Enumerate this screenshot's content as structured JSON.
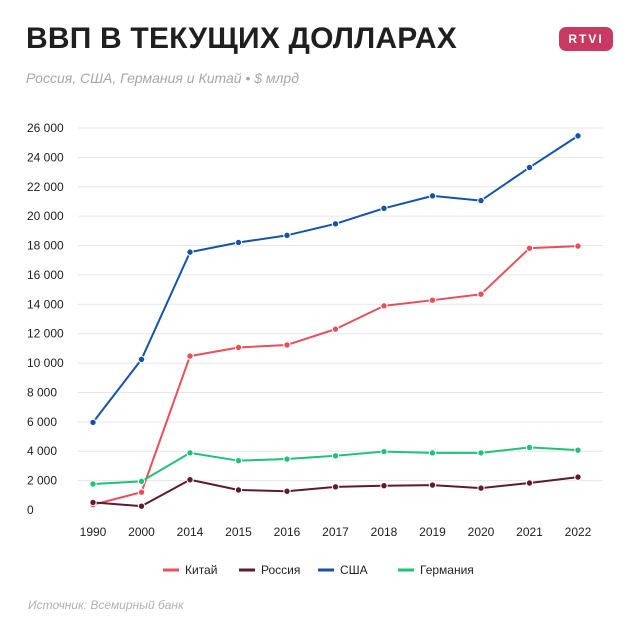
{
  "header": {
    "title": "ВВП В ТЕКУЩИХ ДОЛЛАРАХ",
    "subtitle": "Россия, США, Германия и Китай • $ млрд",
    "logo_text": "RTVI"
  },
  "footer": {
    "source": "Источник: Всемирный банк"
  },
  "colors": {
    "china": "#e5505a",
    "russia": "#5c1b32",
    "usa": "#1553a8",
    "germany": "#22c178",
    "grid": "#e6e6e6",
    "logo": "#c93a63"
  },
  "chart_data": {
    "type": "line",
    "title": "ВВП В ТЕКУЩИХ ДОЛЛАРАХ",
    "subtitle": "Россия, США, Германия и Китай • $ млрд",
    "categories": [
      "1990",
      "2000",
      "2014",
      "2015",
      "2016",
      "2017",
      "2018",
      "2019",
      "2020",
      "2021",
      "2022"
    ],
    "ylim": [
      0,
      26000
    ],
    "yticks": [
      0,
      2000,
      4000,
      6000,
      8000,
      10000,
      12000,
      14000,
      16000,
      18000,
      20000,
      22000,
      24000,
      26000
    ],
    "ytick_labels": [
      "0",
      "2 000",
      "4 000",
      "6 000",
      "8 000",
      "10 000",
      "12 000",
      "14 000",
      "16 000",
      "18 000",
      "20 000",
      "22 000",
      "24 000",
      "26 000"
    ],
    "grid": true,
    "legend_position": "bottom",
    "series": [
      {
        "name": "Китай",
        "color": "#e5505a",
        "values": [
          361,
          1211,
          10476,
          11062,
          11233,
          12310,
          13895,
          14280,
          14688,
          17820,
          17963
        ]
      },
      {
        "name": "Россия",
        "color": "#5c1b32",
        "values": [
          517,
          260,
          2059,
          1363,
          1277,
          1575,
          1653,
          1695,
          1489,
          1837,
          2240
        ]
      },
      {
        "name": "США",
        "color": "#1553a8",
        "values": [
          5963,
          10252,
          17551,
          18206,
          18695,
          19477,
          20533,
          21381,
          21060,
          23315,
          25464
        ]
      },
      {
        "name": "Германия",
        "color": "#22c178",
        "values": [
          1772,
          1948,
          3889,
          3357,
          3469,
          3690,
          3975,
          3889,
          3887,
          4260,
          4072
        ]
      }
    ]
  }
}
